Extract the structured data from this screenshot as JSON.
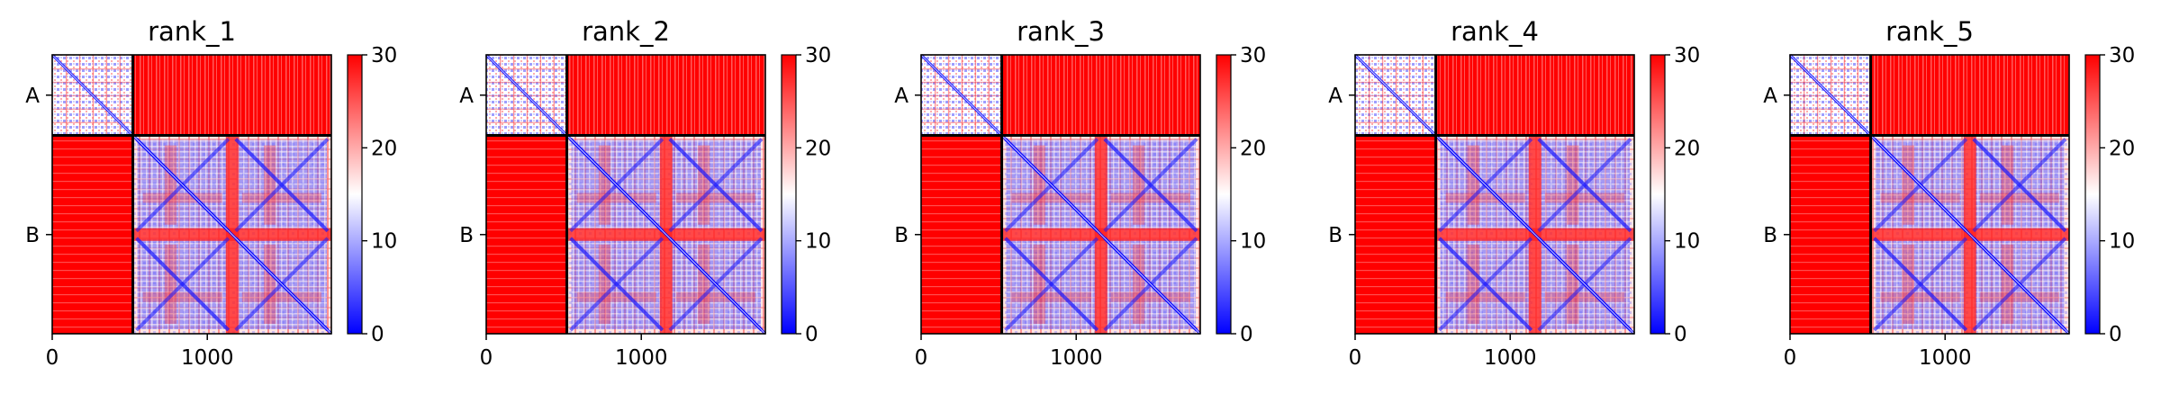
{
  "chart_data": [
    {
      "type": "heatmap",
      "title": "rank_1",
      "xlim": [
        0,
        1800
      ],
      "x_ticks": [
        "0",
        "1000"
      ],
      "y_tick_labels": [
        "A",
        "B"
      ],
      "chain_boundary": 520,
      "colorbar": {
        "range": [
          0,
          30
        ],
        "ticks": [
          "0",
          "10",
          "20",
          "30"
        ],
        "colormap": "bwr",
        "low_color": "#0000ff",
        "mid_color": "#ffffff",
        "high_color": "#ff0000"
      }
    },
    {
      "type": "heatmap",
      "title": "rank_2",
      "xlim": [
        0,
        1800
      ],
      "x_ticks": [
        "0",
        "1000"
      ],
      "y_tick_labels": [
        "A",
        "B"
      ],
      "chain_boundary": 520,
      "colorbar": {
        "range": [
          0,
          30
        ],
        "ticks": [
          "0",
          "10",
          "20",
          "30"
        ],
        "colormap": "bwr",
        "low_color": "#0000ff",
        "mid_color": "#ffffff",
        "high_color": "#ff0000"
      }
    },
    {
      "type": "heatmap",
      "title": "rank_3",
      "xlim": [
        0,
        1800
      ],
      "x_ticks": [
        "0",
        "1000"
      ],
      "y_tick_labels": [
        "A",
        "B"
      ],
      "chain_boundary": 520,
      "colorbar": {
        "range": [
          0,
          30
        ],
        "ticks": [
          "0",
          "10",
          "20",
          "30"
        ],
        "colormap": "bwr",
        "low_color": "#0000ff",
        "mid_color": "#ffffff",
        "high_color": "#ff0000"
      }
    },
    {
      "type": "heatmap",
      "title": "rank_4",
      "xlim": [
        0,
        1800
      ],
      "x_ticks": [
        "0",
        "1000"
      ],
      "y_tick_labels": [
        "A",
        "B"
      ],
      "chain_boundary": 520,
      "colorbar": {
        "range": [
          0,
          30
        ],
        "ticks": [
          "0",
          "10",
          "20",
          "30"
        ],
        "colormap": "bwr",
        "low_color": "#0000ff",
        "mid_color": "#ffffff",
        "high_color": "#ff0000"
      }
    },
    {
      "type": "heatmap",
      "title": "rank_5",
      "xlim": [
        0,
        1800
      ],
      "x_ticks": [
        "0",
        "1000"
      ],
      "y_tick_labels": [
        "A",
        "B"
      ],
      "chain_boundary": 520,
      "colorbar": {
        "range": [
          0,
          30
        ],
        "ticks": [
          "0",
          "10",
          "20",
          "30"
        ],
        "colormap": "bwr",
        "low_color": "#0000ff",
        "mid_color": "#ffffff",
        "high_color": "#ff0000"
      }
    }
  ]
}
